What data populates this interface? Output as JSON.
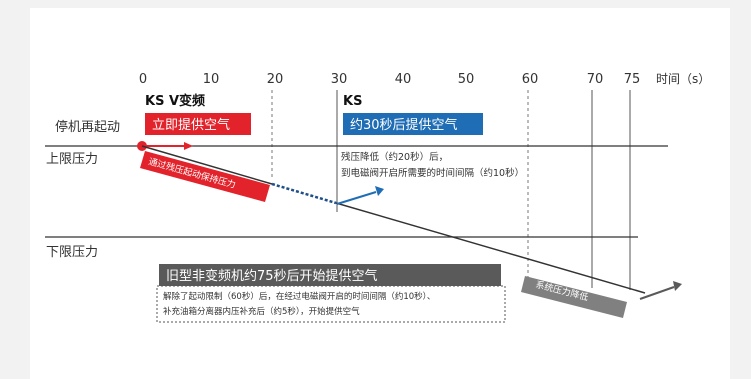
{
  "colors": {
    "red": "#e2232b",
    "blue": "#1f6db5",
    "gray_dark": "#5a5a5a",
    "gray_mid": "#808080",
    "line": "#333333",
    "background": "#f2f2f2"
  },
  "axis": {
    "ticks": [
      "0",
      "10",
      "20",
      "30",
      "40",
      "50",
      "60",
      "70",
      "75"
    ],
    "unit_label": "时间（s）"
  },
  "rows": {
    "restart": "停机再起动",
    "upper": "上限压力",
    "lower": "下限压力"
  },
  "ks_v": {
    "title": "KS V变频",
    "box": "立即提供空气",
    "diag_label": "通过残压起动保持压力"
  },
  "ks": {
    "title": "KS",
    "box": "约30秒后提供空气",
    "note_line1": "残压降低（约20秒）后，",
    "note_line2": "到电磁阀开启所需要的时间间隔（约10秒）"
  },
  "old": {
    "box": "旧型非变频机约75秒后开始提供空气",
    "note_line1": "解除了起动限制（60秒）后，在经过电磁阀开启的时间间隔（约10秒）、",
    "note_line2": "补充油箱分离器内压补充后（约5秒），开始提供空气"
  },
  "system_label": "系统压力降低"
}
